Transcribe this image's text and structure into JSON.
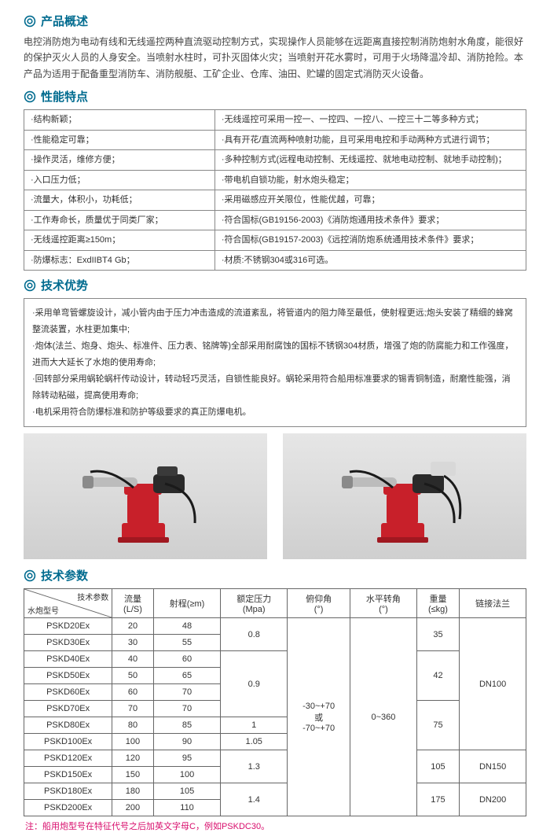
{
  "icon_color": "#006b8f",
  "sections": {
    "overview": {
      "title": "产品概述",
      "text": "电控消防炮为电动有线和无线遥控两种直流驱动控制方式，实现操作人员能够在远距离直接控制消防炮射水角度，能很好的保护灭火人员的人身安全。当喷射水柱时，可扑灭固体火灾；当喷射开花水雾时，可用于火场降温冷却、消防抢险。本产品为适用于配备重型消防车、消防舰艇、工矿企业、仓库、油田、贮罐的固定式消防灭火设备。"
    },
    "features": {
      "title": "性能特点",
      "rows": [
        [
          "·结构新颖；",
          "·无线遥控可采用一控一、一控四、一控八、一控三十二等多种方式；"
        ],
        [
          "·性能稳定可靠；",
          "·具有开花/直流两种喷射功能，且可采用电控和手动两种方式进行调节；"
        ],
        [
          "·操作灵活，维修方便；",
          "·多种控制方式(远程电动控制、无线遥控、就地电动控制、就地手动控制)；"
        ],
        [
          "·入口压力低；",
          "·带电机自锁功能，射水炮头稳定；"
        ],
        [
          "·流量大，体积小，功耗低；",
          "·采用磁感应开关限位，性能优越，可靠；"
        ],
        [
          "·工作寿命长，质量优于同类厂家；",
          "·符合国标(GB19156-2003)《消防炮通用技术条件》要求；"
        ],
        [
          "·无线遥控距离≥150m；",
          "·符合国标(GB19157-2003)《远控消防炮系统通用技术条件》要求；"
        ],
        [
          "·防爆标志：ExdIIBT4 Gb；",
          "·材质:不锈钢304或316可选。"
        ]
      ]
    },
    "advantages": {
      "title": "技术优势",
      "items": [
        "·采用单弯管螺旋设计，减小管内由于压力冲击造成的流道紊乱，将管道内的阻力降至最低，使射程更远;炮头安装了精细的蜂窝整流装置，水柱更加集中;",
        "·炮体(法兰、炮身、炮头、标准件、压力表、铭牌等)全部采用耐腐蚀的国标不锈钢304材质，增强了炮的防腐能力和工作强度，进而大大延长了水炮的使用寿命;",
        "·回转部分采用蜗轮蜗杆传动设计，转动轻巧灵活，自锁性能良好。蜗轮采用符合船用标准要求的锡青铜制造，耐磨性能强，消除转动粘磁，提高使用寿命;",
        "·电机采用符合防爆标准和防护等级要求的真正防爆电机。"
      ]
    },
    "params": {
      "title": "技术参数",
      "diag_a": "技术参数",
      "diag_b": "水炮型号",
      "headers": [
        "流量\n(L/S)",
        "射程(≥m)",
        "额定压力\n(Mpa)",
        "俯仰角\n(°)",
        "水平转角\n(°)",
        "重量\n(≤kg)",
        "链接法兰"
      ],
      "pitch": "-30~+70\n或\n-70~+70",
      "horiz": "0~360",
      "rows": [
        {
          "m": "PSKD20Ex",
          "f": "20",
          "r": "48",
          "p": "0.8",
          "w": "35",
          "fl": "DN100",
          "p_rs": 2,
          "w_rs": 2,
          "fl_rs": 8
        },
        {
          "m": "PSKD30Ex",
          "f": "30",
          "r": "55"
        },
        {
          "m": "PSKD40Ex",
          "f": "40",
          "r": "60",
          "p": "0.9",
          "w": "42",
          "p_rs": 4,
          "w_rs": 3
        },
        {
          "m": "PSKD50Ex",
          "f": "50",
          "r": "65"
        },
        {
          "m": "PSKD60Ex",
          "f": "60",
          "r": "70"
        },
        {
          "m": "PSKD70Ex",
          "f": "70",
          "r": "70",
          "w": "75",
          "w_rs": 3
        },
        {
          "m": "PSKD80Ex",
          "f": "80",
          "r": "85",
          "p": "1",
          "p_rs": 1
        },
        {
          "m": "PSKD100Ex",
          "f": "100",
          "r": "90",
          "p": "1.05",
          "p_rs": 1
        },
        {
          "m": "PSKD120Ex",
          "f": "120",
          "r": "95",
          "p": "1.3",
          "w": "105",
          "fl": "DN150",
          "p_rs": 2,
          "w_rs": 2,
          "fl_rs": 2
        },
        {
          "m": "PSKD150Ex",
          "f": "150",
          "r": "100"
        },
        {
          "m": "PSKD180Ex",
          "f": "180",
          "r": "105",
          "p": "1.4",
          "w": "175",
          "fl": "DN200",
          "p_rs": 2,
          "w_rs": 2,
          "fl_rs": 2
        },
        {
          "m": "PSKD200Ex",
          "f": "200",
          "r": "110"
        }
      ],
      "note": "注：船用炮型号在特征代号之后加英文字母C，例如PSKDC30。"
    }
  },
  "product_color_body": "#c8202a",
  "product_color_metal": "#bcbcbc",
  "product_color_dark": "#2a2a2a"
}
